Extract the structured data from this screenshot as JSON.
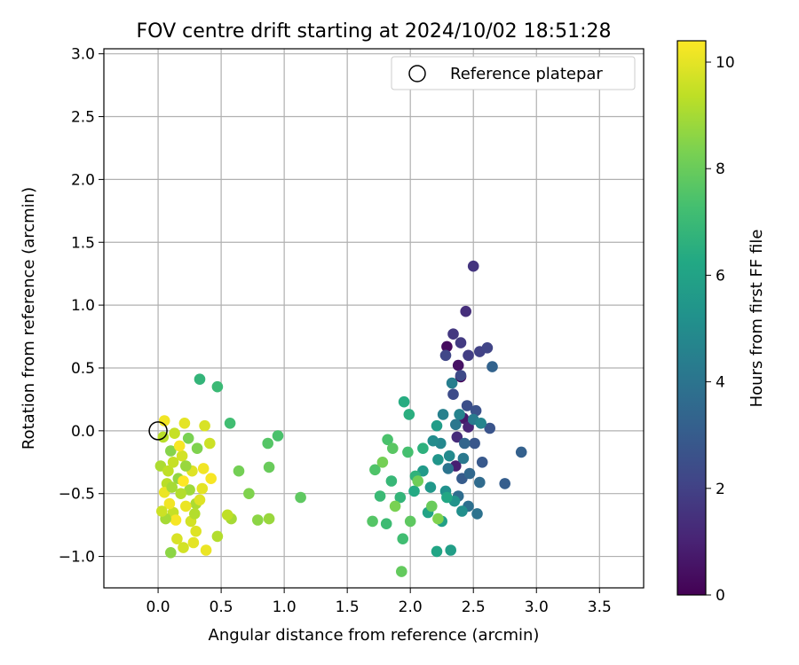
{
  "chart_data": {
    "type": "scatter",
    "title": "FOV centre drift starting at 2024/10/02 18:51:28",
    "xlabel": "Angular distance from reference (arcmin)",
    "ylabel": "Rotation from reference (arcmin)",
    "xlim": [
      -0.43,
      3.85
    ],
    "ylim": [
      -1.25,
      3.04
    ],
    "xticks": [
      "0.0",
      "0.5",
      "1.0",
      "1.5",
      "2.0",
      "2.5",
      "3.0",
      "3.5"
    ],
    "xtick_values": [
      0,
      0.5,
      1.0,
      1.5,
      2.0,
      2.5,
      3.0,
      3.5
    ],
    "yticks": [
      "−1.0",
      "−0.5",
      "0.0",
      "0.5",
      "1.0",
      "1.5",
      "2.0",
      "2.5",
      "3.0"
    ],
    "ytick_values": [
      -1.0,
      -0.5,
      0,
      0.5,
      1.0,
      1.5,
      2.0,
      2.5,
      3.0
    ],
    "grid": true,
    "legend": {
      "position": "top-right",
      "label": "Reference platepar",
      "marker": "open-circle"
    },
    "reference_point": {
      "x": 0.0,
      "y": 0.0
    },
    "colorbar": {
      "label": "Hours from first FF file",
      "range": [
        0,
        10.4
      ],
      "ticks": [
        "0",
        "2",
        "4",
        "6",
        "8",
        "10"
      ],
      "tick_values": [
        0,
        2,
        4,
        6,
        8,
        10
      ],
      "colormap": "viridis"
    },
    "points": [
      [
        2.4,
        0.43,
        0.0
      ],
      [
        2.29,
        0.67,
        0.3
      ],
      [
        2.38,
        0.52,
        0.5
      ],
      [
        2.42,
        0.1,
        0.7
      ],
      [
        2.36,
        -0.28,
        0.9
      ],
      [
        2.46,
        0.03,
        1.1
      ],
      [
        2.37,
        -0.05,
        1.3
      ],
      [
        2.44,
        0.95,
        1.4
      ],
      [
        2.5,
        1.31,
        1.6
      ],
      [
        2.34,
        0.77,
        1.7
      ],
      [
        2.4,
        0.7,
        1.8
      ],
      [
        2.46,
        0.6,
        1.9
      ],
      [
        2.55,
        0.63,
        2.0
      ],
      [
        2.61,
        0.66,
        2.1
      ],
      [
        2.28,
        0.6,
        2.2
      ],
      [
        2.4,
        0.44,
        2.3
      ],
      [
        2.34,
        0.29,
        2.4
      ],
      [
        2.45,
        0.2,
        2.5
      ],
      [
        2.52,
        0.16,
        2.6
      ],
      [
        2.63,
        0.02,
        2.7
      ],
      [
        2.51,
        -0.1,
        2.8
      ],
      [
        2.57,
        -0.25,
        2.9
      ],
      [
        2.41,
        -0.38,
        3.0
      ],
      [
        2.75,
        -0.42,
        3.1
      ],
      [
        2.88,
        -0.17,
        3.2
      ],
      [
        2.65,
        0.51,
        3.3
      ],
      [
        2.43,
        -0.1,
        3.4
      ],
      [
        2.47,
        -0.34,
        3.5
      ],
      [
        2.55,
        -0.41,
        3.6
      ],
      [
        2.38,
        -0.52,
        3.7
      ],
      [
        2.46,
        -0.6,
        3.8
      ],
      [
        2.53,
        -0.66,
        3.9
      ],
      [
        2.3,
        -0.3,
        4.0
      ],
      [
        2.36,
        0.05,
        4.1
      ],
      [
        2.42,
        -0.22,
        4.2
      ],
      [
        2.5,
        0.09,
        4.3
      ],
      [
        2.33,
        0.38,
        4.4
      ],
      [
        2.26,
        0.13,
        4.5
      ],
      [
        2.39,
        0.13,
        4.6
      ],
      [
        2.56,
        0.06,
        4.7
      ],
      [
        2.24,
        -0.1,
        4.8
      ],
      [
        2.31,
        -0.2,
        4.9
      ],
      [
        2.18,
        -0.08,
        5.0
      ],
      [
        2.41,
        -0.64,
        5.1
      ],
      [
        2.28,
        -0.48,
        5.2
      ],
      [
        2.35,
        -0.56,
        5.3
      ],
      [
        2.22,
        -0.23,
        5.4
      ],
      [
        2.16,
        -0.45,
        5.5
      ],
      [
        2.1,
        -0.32,
        5.6
      ],
      [
        2.21,
        0.04,
        5.7
      ],
      [
        2.32,
        -0.95,
        5.8
      ],
      [
        2.25,
        -0.72,
        5.9
      ],
      [
        2.14,
        -0.65,
        6.0
      ],
      [
        2.21,
        -0.96,
        6.1
      ],
      [
        2.29,
        -0.53,
        6.2
      ],
      [
        2.03,
        -0.48,
        6.3
      ],
      [
        1.95,
        0.23,
        6.4
      ],
      [
        1.99,
        0.13,
        6.5
      ],
      [
        2.1,
        -0.14,
        6.6
      ],
      [
        2.04,
        -0.36,
        6.7
      ],
      [
        1.92,
        -0.53,
        6.8
      ],
      [
        1.85,
        -0.4,
        6.9
      ],
      [
        1.76,
        -0.52,
        7.0
      ],
      [
        1.81,
        -0.74,
        7.1
      ],
      [
        1.94,
        -0.86,
        7.2
      ],
      [
        1.98,
        -0.17,
        7.3
      ],
      [
        1.82,
        -0.07,
        7.4
      ],
      [
        1.72,
        -0.31,
        7.5
      ],
      [
        1.7,
        -0.72,
        7.6
      ],
      [
        1.86,
        -0.14,
        7.7
      ],
      [
        2.0,
        -0.72,
        7.8
      ],
      [
        1.93,
        -1.12,
        7.9
      ],
      [
        2.17,
        -0.6,
        8.0
      ],
      [
        2.06,
        -0.4,
        8.1
      ],
      [
        1.78,
        -0.25,
        8.2
      ],
      [
        1.88,
        -0.6,
        8.3
      ],
      [
        2.22,
        -0.7,
        8.4
      ],
      [
        0.33,
        0.41,
        6.8
      ],
      [
        0.47,
        0.35,
        7.0
      ],
      [
        0.57,
        0.06,
        7.2
      ],
      [
        0.95,
        -0.04,
        7.4
      ],
      [
        0.87,
        -0.1,
        7.6
      ],
      [
        1.13,
        -0.53,
        7.8
      ],
      [
        0.88,
        -0.29,
        8.0
      ],
      [
        0.64,
        -0.32,
        8.2
      ],
      [
        0.72,
        -0.5,
        8.4
      ],
      [
        0.79,
        -0.71,
        8.6
      ],
      [
        0.88,
        -0.7,
        8.8
      ],
      [
        0.58,
        -0.7,
        9.0
      ],
      [
        0.47,
        -0.84,
        9.2
      ],
      [
        0.55,
        -0.67,
        9.4
      ],
      [
        0.41,
        -0.1,
        9.6
      ],
      [
        0.37,
        0.04,
        9.8
      ],
      [
        0.21,
        0.06,
        10.0
      ],
      [
        0.05,
        0.08,
        10.2
      ],
      [
        0.02,
        -0.28,
        9.1
      ],
      [
        0.07,
        -0.42,
        9.3
      ],
      [
        0.12,
        -0.65,
        9.5
      ],
      [
        0.2,
        -0.93,
        9.7
      ],
      [
        0.3,
        -0.8,
        9.9
      ],
      [
        0.38,
        -0.95,
        10.1
      ],
      [
        0.42,
        -0.38,
        10.3
      ],
      [
        0.1,
        -0.16,
        8.5
      ],
      [
        0.16,
        -0.38,
        8.7
      ],
      [
        0.25,
        -0.47,
        8.9
      ],
      [
        0.3,
        -0.58,
        9.1
      ],
      [
        0.04,
        -0.05,
        9.3
      ],
      [
        0.13,
        -0.02,
        9.5
      ],
      [
        0.19,
        -0.2,
        9.7
      ],
      [
        0.27,
        -0.32,
        9.9
      ],
      [
        0.35,
        -0.46,
        10.0
      ],
      [
        0.09,
        -0.58,
        10.2
      ],
      [
        0.14,
        -0.71,
        10.3
      ],
      [
        0.22,
        -0.6,
        10.1
      ],
      [
        0.06,
        -0.7,
        9.0
      ],
      [
        0.1,
        -0.97,
        8.6
      ],
      [
        0.31,
        -0.14,
        8.4
      ],
      [
        0.24,
        -0.06,
        8.3
      ],
      [
        0.18,
        -0.5,
        9.2
      ],
      [
        0.08,
        -0.32,
        9.4
      ],
      [
        0.03,
        -0.64,
        9.6
      ],
      [
        0.15,
        -0.86,
        9.8
      ],
      [
        0.28,
        -0.89,
        10.0
      ],
      [
        0.36,
        -0.3,
        10.2
      ],
      [
        0.2,
        -0.4,
        10.4
      ],
      [
        0.12,
        -0.25,
        9.5
      ],
      [
        0.26,
        -0.72,
        9.7
      ],
      [
        0.33,
        -0.55,
        9.9
      ],
      [
        0.05,
        -0.49,
        10.1
      ],
      [
        0.17,
        -0.12,
        10.3
      ],
      [
        0.22,
        -0.28,
        8.8
      ],
      [
        0.11,
        -0.45,
        9.0
      ],
      [
        0.29,
        -0.66,
        9.2
      ]
    ]
  }
}
